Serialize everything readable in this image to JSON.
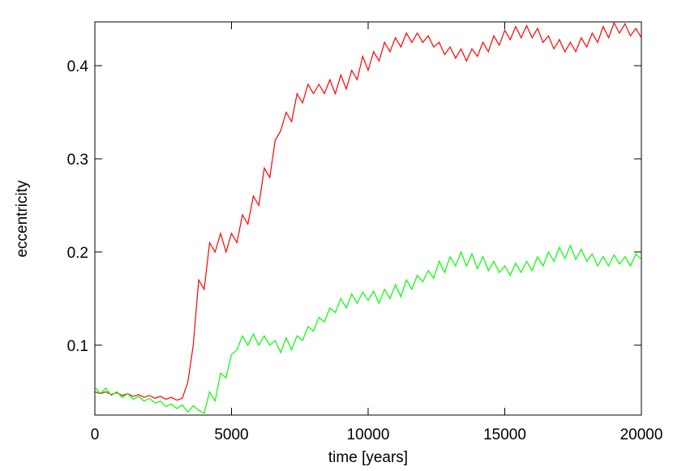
{
  "chart_data": {
    "type": "line",
    "xlabel": "time [years]",
    "ylabel": "eccentricity",
    "x": [
      0,
      200,
      400,
      600,
      800,
      1000,
      1200,
      1400,
      1600,
      1800,
      2000,
      2200,
      2400,
      2600,
      2800,
      3000,
      3200,
      3400,
      3600,
      3800,
      4000,
      4200,
      4400,
      4600,
      4800,
      5000,
      5200,
      5400,
      5600,
      5800,
      6000,
      6200,
      6400,
      6600,
      6800,
      7000,
      7200,
      7400,
      7600,
      7800,
      8000,
      8200,
      8400,
      8600,
      8800,
      9000,
      9200,
      9400,
      9600,
      9800,
      10000,
      10200,
      10400,
      10600,
      10800,
      11000,
      11200,
      11400,
      11600,
      11800,
      12000,
      12200,
      12400,
      12600,
      12800,
      13000,
      13200,
      13400,
      13600,
      13800,
      14000,
      14200,
      14400,
      14600,
      14800,
      15000,
      15200,
      15400,
      15600,
      15800,
      16000,
      16200,
      16400,
      16600,
      16800,
      17000,
      17200,
      17400,
      17600,
      17800,
      18000,
      18200,
      18400,
      18600,
      18800,
      19000,
      19200,
      19400,
      19600,
      19800,
      20000
    ],
    "series": [
      {
        "color": "#ff0000",
        "values": [
          0.05,
          0.048,
          0.05,
          0.047,
          0.049,
          0.046,
          0.048,
          0.045,
          0.047,
          0.044,
          0.046,
          0.043,
          0.045,
          0.042,
          0.044,
          0.041,
          0.043,
          0.06,
          0.1,
          0.17,
          0.16,
          0.21,
          0.2,
          0.22,
          0.2,
          0.22,
          0.21,
          0.24,
          0.23,
          0.26,
          0.25,
          0.29,
          0.28,
          0.32,
          0.33,
          0.35,
          0.34,
          0.37,
          0.36,
          0.38,
          0.37,
          0.38,
          0.37,
          0.385,
          0.37,
          0.39,
          0.375,
          0.395,
          0.385,
          0.41,
          0.395,
          0.415,
          0.405,
          0.425,
          0.415,
          0.43,
          0.42,
          0.435,
          0.425,
          0.435,
          0.425,
          0.432,
          0.42,
          0.425,
          0.412,
          0.42,
          0.408,
          0.418,
          0.405,
          0.418,
          0.41,
          0.425,
          0.415,
          0.432,
          0.422,
          0.438,
          0.428,
          0.442,
          0.43,
          0.443,
          0.43,
          0.44,
          0.425,
          0.432,
          0.418,
          0.428,
          0.415,
          0.425,
          0.415,
          0.43,
          0.42,
          0.435,
          0.425,
          0.442,
          0.43,
          0.446,
          0.435,
          0.445,
          0.432,
          0.44,
          0.43
        ]
      },
      {
        "color": "#00ff00",
        "values": [
          0.055,
          0.048,
          0.054,
          0.046,
          0.05,
          0.044,
          0.048,
          0.042,
          0.045,
          0.04,
          0.043,
          0.038,
          0.04,
          0.034,
          0.037,
          0.032,
          0.036,
          0.028,
          0.035,
          0.03,
          0.027,
          0.05,
          0.04,
          0.07,
          0.065,
          0.09,
          0.095,
          0.11,
          0.1,
          0.112,
          0.1,
          0.11,
          0.1,
          0.105,
          0.092,
          0.108,
          0.095,
          0.11,
          0.105,
          0.12,
          0.115,
          0.13,
          0.125,
          0.14,
          0.135,
          0.15,
          0.14,
          0.155,
          0.145,
          0.157,
          0.148,
          0.158,
          0.145,
          0.16,
          0.15,
          0.165,
          0.152,
          0.17,
          0.16,
          0.175,
          0.168,
          0.18,
          0.172,
          0.19,
          0.178,
          0.195,
          0.185,
          0.2,
          0.185,
          0.198,
          0.182,
          0.195,
          0.18,
          0.19,
          0.178,
          0.185,
          0.175,
          0.188,
          0.178,
          0.19,
          0.18,
          0.195,
          0.185,
          0.2,
          0.19,
          0.205,
          0.193,
          0.207,
          0.192,
          0.203,
          0.19,
          0.198,
          0.185,
          0.195,
          0.185,
          0.197,
          0.187,
          0.195,
          0.185,
          0.198,
          0.192
        ]
      }
    ],
    "xlim": [
      0,
      20000
    ],
    "xticks": [
      0,
      5000,
      10000,
      15000,
      20000
    ],
    "ylim": [
      0.025,
      0.447
    ],
    "yticks": [
      0.1,
      0.2,
      0.3,
      0.4
    ],
    "grid": false
  }
}
